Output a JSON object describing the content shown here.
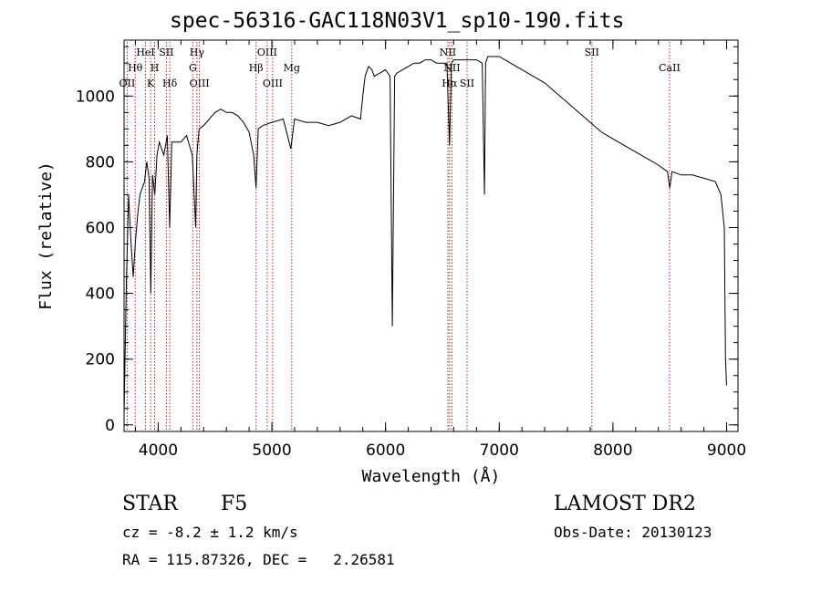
{
  "chart_data": {
    "type": "line",
    "title": "spec-56316-GAC118N03V1_sp10-190.fits",
    "xlabel": "Wavelength (Å)",
    "ylabel": "Flux (relative)",
    "xlim": [
      3700,
      9100
    ],
    "ylim": [
      -20,
      1170
    ],
    "xticks": [
      4000,
      5000,
      6000,
      7000,
      8000,
      9000
    ],
    "yticks": [
      0,
      200,
      400,
      600,
      800,
      1000
    ],
    "grid": false,
    "line_color": "#000000",
    "marker_color": "#a52a2a",
    "series": [
      {
        "x": [
          3700,
          3720,
          3740,
          3760,
          3780,
          3800,
          3820,
          3840,
          3860,
          3880,
          3900,
          3920,
          3935,
          3950,
          3970,
          3990,
          4010,
          4050,
          4080,
          4101,
          4120,
          4150,
          4200,
          4250,
          4300,
          4330,
          4340,
          4360,
          4400,
          4450,
          4500,
          4550,
          4600,
          4650,
          4700,
          4750,
          4800,
          4840,
          4861,
          4880,
          4920,
          5000,
          5100,
          5167,
          5200,
          5300,
          5400,
          5500,
          5600,
          5700,
          5780,
          5800,
          5820,
          5850,
          5880,
          5900,
          5950,
          6000,
          6040,
          6060,
          6080,
          6100,
          6150,
          6200,
          6250,
          6300,
          6350,
          6400,
          6450,
          6500,
          6540,
          6563,
          6580,
          6600,
          6650,
          6700,
          6750,
          6800,
          6850,
          6870,
          6880,
          6900,
          6950,
          7000,
          7100,
          7200,
          7300,
          7400,
          7500,
          7600,
          7700,
          7800,
          7900,
          8000,
          8100,
          8200,
          8300,
          8400,
          8480,
          8500,
          8520,
          8600,
          8700,
          8800,
          8900,
          8950,
          8980,
          8990,
          9000
        ],
        "y": [
          30,
          430,
          700,
          560,
          450,
          560,
          640,
          700,
          720,
          740,
          800,
          750,
          400,
          760,
          700,
          820,
          860,
          820,
          880,
          600,
          860,
          860,
          860,
          880,
          820,
          600,
          820,
          900,
          910,
          930,
          950,
          960,
          950,
          950,
          940,
          920,
          890,
          820,
          720,
          900,
          910,
          920,
          930,
          840,
          930,
          920,
          920,
          910,
          920,
          940,
          930,
          1000,
          1060,
          1090,
          1080,
          1060,
          1070,
          1080,
          1060,
          300,
          1060,
          1070,
          1080,
          1090,
          1100,
          1100,
          1110,
          1110,
          1100,
          1100,
          1100,
          850,
          1100,
          1110,
          1110,
          1110,
          1110,
          1110,
          1100,
          700,
          1100,
          1120,
          1120,
          1120,
          1100,
          1080,
          1060,
          1040,
          1010,
          980,
          950,
          920,
          890,
          870,
          850,
          830,
          810,
          790,
          770,
          720,
          770,
          760,
          760,
          750,
          740,
          700,
          600,
          200,
          120
        ]
      }
    ],
    "annotations": [
      {
        "label": "OII",
        "x": 3727,
        "row": 3
      },
      {
        "label": "Hθ",
        "x": 3798,
        "row": 2
      },
      {
        "label": "HeI",
        "x": 3889,
        "row": 1
      },
      {
        "label": "K",
        "x": 3934,
        "row": 3
      },
      {
        "label": "H",
        "x": 3969,
        "row": 2
      },
      {
        "label": "SII",
        "x": 4072,
        "row": 1
      },
      {
        "label": "Hδ",
        "x": 4102,
        "row": 3
      },
      {
        "label": "Hγ",
        "x": 4341,
        "row": 1
      },
      {
        "label": "G",
        "x": 4305,
        "row": 2
      },
      {
        "label": "OIII",
        "x": 4363,
        "row": 3
      },
      {
        "label": "Hβ",
        "x": 4861,
        "row": 2
      },
      {
        "label": "OIII",
        "x": 4959,
        "row": 1
      },
      {
        "label": "OIII",
        "x": 5007,
        "row": 3
      },
      {
        "label": "Mg",
        "x": 5175,
        "row": 2
      },
      {
        "label": "NII",
        "x": 6548,
        "row": 1
      },
      {
        "label": "NII",
        "x": 6584,
        "row": 2
      },
      {
        "label": "Hα",
        "x": 6563,
        "row": 3
      },
      {
        "label": "SII",
        "x": 6717,
        "row": 3
      },
      {
        "label": "SII",
        "x": 7815,
        "row": 1
      },
      {
        "label": "CaII",
        "x": 8498,
        "row": 2
      }
    ]
  },
  "info": {
    "class_label": "STAR",
    "subclass": "F5",
    "survey": "LAMOST DR2",
    "cz": "cz = -8.2 ± 1.2 km/s",
    "obs_date": "Obs-Date: 20130123",
    "radec": "RA = 115.87326, DEC =   2.26581"
  }
}
